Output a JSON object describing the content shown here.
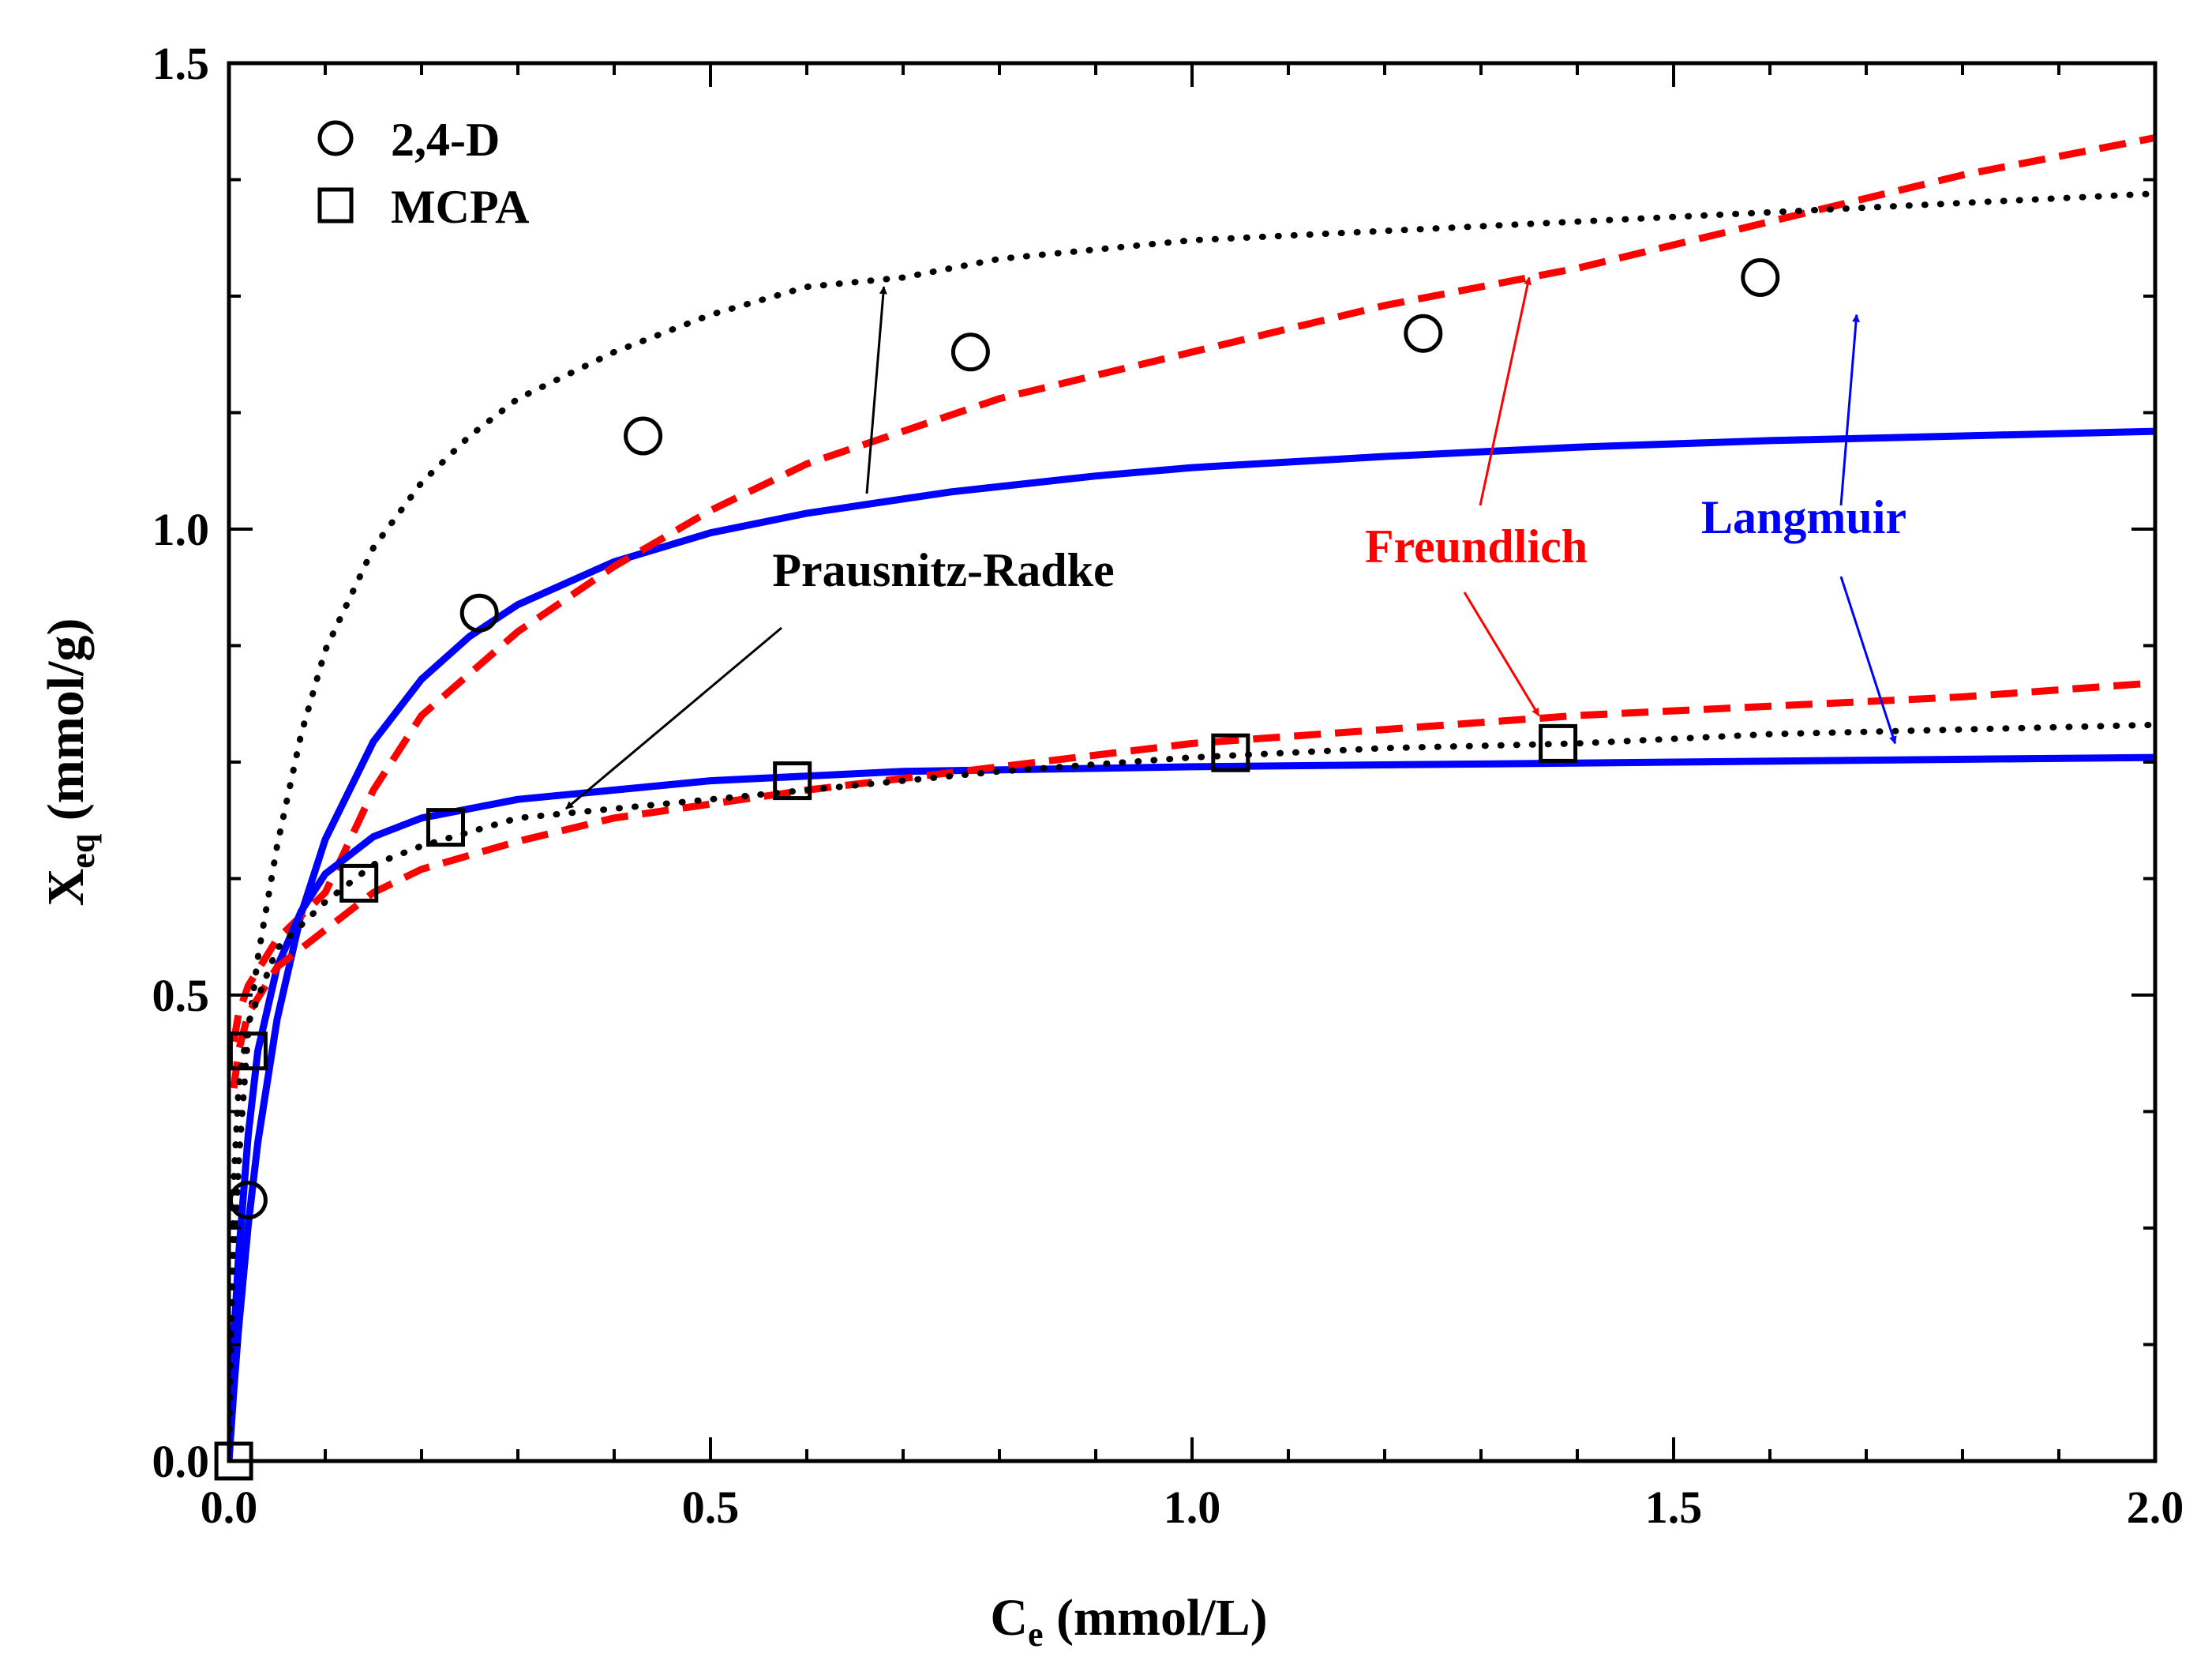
{
  "chart_data": {
    "type": "scatter",
    "title": "",
    "xlabel": {
      "main": "C",
      "sub": "e",
      "rest": " (mmol/L)"
    },
    "ylabel": {
      "main": "X",
      "sub": "eq",
      "rest": " (mmol/g)"
    },
    "xlim": [
      0,
      2.0
    ],
    "ylim": [
      0,
      1.5
    ],
    "xticks": [
      0.0,
      0.5,
      1.0,
      1.5,
      2.0
    ],
    "xtick_labels": [
      "0.0",
      "0.5",
      "1.0",
      "1.5",
      "2.0"
    ],
    "yticks": [
      0.0,
      0.5,
      1.0,
      1.5
    ],
    "ytick_labels": [
      "0.0",
      "0.5",
      "1.0",
      "1.5"
    ],
    "grid": false,
    "legend": {
      "position": "top-left",
      "entries": [
        {
          "label": "2,4-D",
          "marker": "circle"
        },
        {
          "label": "MCPA",
          "marker": "square"
        }
      ]
    },
    "series": [
      {
        "name": "2,4-D",
        "kind": "data",
        "marker": "circle",
        "x": [
          0.02,
          0.26,
          0.43,
          0.77,
          1.24,
          1.59
        ],
        "y": [
          0.28,
          0.91,
          1.1,
          1.19,
          1.21,
          1.27
        ]
      },
      {
        "name": "MCPA",
        "kind": "data",
        "marker": "square",
        "x": [
          0.005,
          0.02,
          0.135,
          0.225,
          0.585,
          1.04,
          1.38
        ],
        "y": [
          0.0,
          0.44,
          0.62,
          0.68,
          0.73,
          0.76,
          0.77
        ]
      },
      {
        "name": "Langmuir (2,4-D)",
        "kind": "fit",
        "color": "#0000ff",
        "dash": "solid",
        "x": [
          0,
          0.005,
          0.01,
          0.02,
          0.03,
          0.05,
          0.075,
          0.1,
          0.15,
          0.2,
          0.25,
          0.3,
          0.4,
          0.5,
          0.6,
          0.75,
          0.9,
          1.0,
          1.2,
          1.4,
          1.6,
          1.8,
          2.0
        ],
        "y": [
          0,
          0.075,
          0.142,
          0.253,
          0.342,
          0.474,
          0.587,
          0.667,
          0.772,
          0.839,
          0.885,
          0.919,
          0.965,
          0.996,
          1.017,
          1.04,
          1.057,
          1.066,
          1.078,
          1.088,
          1.095,
          1.1,
          1.105
        ]
      },
      {
        "name": "Freundlich (2,4-D)",
        "kind": "fit",
        "color": "#ff0000",
        "dash": "dashed",
        "x": [
          0.005,
          0.01,
          0.02,
          0.05,
          0.1,
          0.15,
          0.2,
          0.3,
          0.4,
          0.5,
          0.6,
          0.8,
          1.0,
          1.2,
          1.4,
          1.6,
          1.8,
          2.0
        ],
        "y": [
          0.45,
          0.48,
          0.51,
          0.56,
          0.61,
          0.72,
          0.8,
          0.89,
          0.96,
          1.02,
          1.07,
          1.14,
          1.19,
          1.24,
          1.28,
          1.33,
          1.38,
          1.42
        ]
      },
      {
        "name": "Prausnitz-Radke (2,4-D)",
        "kind": "fit",
        "color": "#000000",
        "dash": "dotted",
        "x": [
          0,
          0.005,
          0.01,
          0.02,
          0.03,
          0.05,
          0.075,
          0.1,
          0.15,
          0.2,
          0.25,
          0.3,
          0.4,
          0.5,
          0.6,
          0.7,
          0.8,
          1.0,
          1.2,
          1.4,
          1.6,
          1.8,
          2.0
        ],
        "y": [
          0,
          0.19,
          0.32,
          0.46,
          0.54,
          0.66,
          0.78,
          0.87,
          0.98,
          1.05,
          1.1,
          1.14,
          1.19,
          1.23,
          1.26,
          1.27,
          1.29,
          1.31,
          1.32,
          1.33,
          1.34,
          1.35,
          1.36
        ]
      },
      {
        "name": "Langmuir (MCPA)",
        "kind": "fit",
        "color": "#0000ff",
        "dash": "solid",
        "x": [
          0,
          0.005,
          0.01,
          0.02,
          0.03,
          0.05,
          0.075,
          0.1,
          0.15,
          0.2,
          0.25,
          0.3,
          0.4,
          0.5,
          0.7,
          1.0,
          1.5,
          2.0
        ],
        "y": [
          0,
          0.13,
          0.22,
          0.35,
          0.44,
          0.53,
          0.59,
          0.63,
          0.67,
          0.69,
          0.7,
          0.71,
          0.72,
          0.73,
          0.74,
          0.745,
          0.75,
          0.755
        ]
      },
      {
        "name": "Freundlich (MCPA)",
        "kind": "fit",
        "color": "#ff0000",
        "dash": "dashed",
        "x": [
          0.005,
          0.01,
          0.02,
          0.05,
          0.1,
          0.15,
          0.2,
          0.3,
          0.4,
          0.6,
          0.8,
          1.0,
          1.2,
          1.4,
          1.6,
          1.8,
          2.0
        ],
        "y": [
          0.4,
          0.44,
          0.48,
          0.53,
          0.57,
          0.61,
          0.635,
          0.665,
          0.69,
          0.72,
          0.745,
          0.77,
          0.785,
          0.8,
          0.81,
          0.82,
          0.835
        ]
      },
      {
        "name": "Prausnitz-Radke (MCPA)",
        "kind": "fit",
        "color": "#000000",
        "dash": "dotted",
        "x": [
          0,
          0.005,
          0.01,
          0.02,
          0.05,
          0.1,
          0.15,
          0.2,
          0.3,
          0.4,
          0.6,
          0.8,
          1.0,
          1.2,
          1.4,
          1.6,
          1.8,
          2.0
        ],
        "y": [
          0,
          0.3,
          0.4,
          0.47,
          0.55,
          0.6,
          0.64,
          0.66,
          0.69,
          0.7,
          0.72,
          0.74,
          0.755,
          0.765,
          0.77,
          0.78,
          0.785,
          0.79
        ]
      }
    ],
    "annotations": [
      {
        "text": "Prausnitz-Radke",
        "color": "#000000",
        "arrows_to": [
          [
            0.68,
            1.26
          ],
          [
            0.35,
            0.7
          ]
        ]
      },
      {
        "text": "Freundlich",
        "color": "#ff0000",
        "arrows_to": [
          [
            1.35,
            1.27
          ],
          [
            1.36,
            0.8
          ]
        ]
      },
      {
        "text": "Langmuir",
        "color": "#0000ff",
        "arrows_to": [
          [
            1.69,
            1.23
          ],
          [
            1.73,
            0.77
          ]
        ]
      }
    ]
  }
}
